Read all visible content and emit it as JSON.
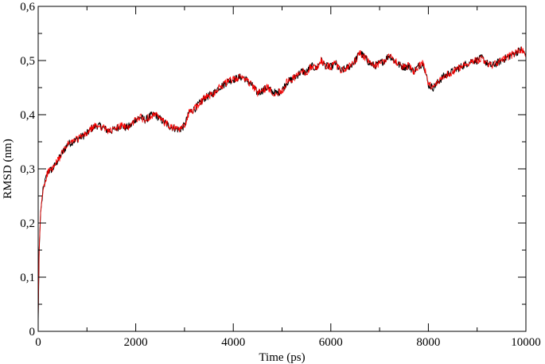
{
  "chart_data": {
    "type": "line",
    "title": "",
    "xlabel": "Time (ps)",
    "ylabel": "RMSD (nm)",
    "xlim": [
      0,
      10000
    ],
    "ylim": [
      0,
      0.6
    ],
    "x_ticks": [
      0,
      2000,
      4000,
      6000,
      8000,
      10000
    ],
    "x_tick_labels": [
      "0",
      "2000",
      "4000",
      "6000",
      "8000",
      "10000"
    ],
    "y_ticks": [
      0,
      0.1,
      0.2,
      0.3,
      0.4,
      0.5,
      0.6
    ],
    "y_tick_labels": [
      "0",
      "0,1",
      "0,2",
      "0,3",
      "0,4",
      "0,5",
      "0,6"
    ],
    "grid": false,
    "legend": "none",
    "series": [
      {
        "color": "#000000",
        "x": [
          0,
          20,
          50,
          100,
          150,
          200,
          300,
          400,
          500,
          600,
          700,
          800,
          900,
          1000,
          1100,
          1200,
          1300,
          1400,
          1500,
          1600,
          1700,
          1800,
          1900,
          2000,
          2100,
          2200,
          2300,
          2400,
          2500,
          2600,
          2700,
          2800,
          2900,
          3000,
          3100,
          3200,
          3300,
          3400,
          3500,
          3600,
          3700,
          3800,
          3900,
          4000,
          4100,
          4200,
          4300,
          4400,
          4500,
          4600,
          4700,
          4800,
          4900,
          5000,
          5100,
          5200,
          5300,
          5400,
          5500,
          5600,
          5700,
          5800,
          5900,
          6000,
          6100,
          6200,
          6300,
          6400,
          6500,
          6600,
          6700,
          6800,
          6900,
          7000,
          7100,
          7200,
          7300,
          7400,
          7500,
          7600,
          7700,
          7800,
          7900,
          8000,
          8100,
          8200,
          8300,
          8400,
          8500,
          8600,
          8700,
          8800,
          8900,
          9000,
          9100,
          9200,
          9300,
          9400,
          9500,
          9600,
          9700,
          9800,
          9900,
          10000
        ],
        "y": [
          0.02,
          0.15,
          0.22,
          0.26,
          0.28,
          0.295,
          0.3,
          0.315,
          0.33,
          0.345,
          0.35,
          0.355,
          0.36,
          0.365,
          0.375,
          0.38,
          0.378,
          0.372,
          0.37,
          0.375,
          0.38,
          0.376,
          0.38,
          0.392,
          0.395,
          0.39,
          0.398,
          0.4,
          0.392,
          0.385,
          0.378,
          0.375,
          0.372,
          0.38,
          0.405,
          0.41,
          0.42,
          0.43,
          0.435,
          0.44,
          0.45,
          0.455,
          0.462,
          0.465,
          0.468,
          0.47,
          0.462,
          0.452,
          0.44,
          0.445,
          0.45,
          0.442,
          0.44,
          0.445,
          0.46,
          0.465,
          0.472,
          0.48,
          0.478,
          0.49,
          0.485,
          0.5,
          0.49,
          0.488,
          0.495,
          0.48,
          0.485,
          0.49,
          0.5,
          0.515,
          0.505,
          0.495,
          0.49,
          0.495,
          0.5,
          0.51,
          0.5,
          0.492,
          0.488,
          0.49,
          0.48,
          0.49,
          0.495,
          0.455,
          0.45,
          0.46,
          0.47,
          0.475,
          0.48,
          0.485,
          0.49,
          0.495,
          0.5,
          0.5,
          0.505,
          0.495,
          0.49,
          0.495,
          0.5,
          0.505,
          0.51,
          0.515,
          0.52,
          0.51
        ]
      },
      {
        "color": "#ff0000",
        "x": [
          0,
          20,
          50,
          100,
          150,
          200,
          300,
          400,
          500,
          600,
          700,
          800,
          900,
          1000,
          1100,
          1200,
          1300,
          1400,
          1500,
          1600,
          1700,
          1800,
          1900,
          2000,
          2100,
          2200,
          2300,
          2400,
          2500,
          2600,
          2700,
          2800,
          2900,
          3000,
          3100,
          3200,
          3300,
          3400,
          3500,
          3600,
          3700,
          3800,
          3900,
          4000,
          4100,
          4200,
          4300,
          4400,
          4500,
          4600,
          4700,
          4800,
          4900,
          5000,
          5100,
          5200,
          5300,
          5400,
          5500,
          5600,
          5700,
          5800,
          5900,
          6000,
          6100,
          6200,
          6300,
          6400,
          6500,
          6600,
          6700,
          6800,
          6900,
          7000,
          7100,
          7200,
          7300,
          7400,
          7500,
          7600,
          7700,
          7800,
          7900,
          8000,
          8100,
          8200,
          8300,
          8400,
          8500,
          8600,
          8700,
          8800,
          8900,
          9000,
          9100,
          9200,
          9300,
          9400,
          9500,
          9600,
          9700,
          9800,
          9900,
          10000
        ],
        "y": [
          0.02,
          0.15,
          0.22,
          0.26,
          0.28,
          0.295,
          0.3,
          0.315,
          0.33,
          0.345,
          0.35,
          0.355,
          0.36,
          0.365,
          0.375,
          0.38,
          0.378,
          0.372,
          0.37,
          0.375,
          0.38,
          0.376,
          0.38,
          0.392,
          0.395,
          0.39,
          0.398,
          0.4,
          0.392,
          0.385,
          0.378,
          0.375,
          0.372,
          0.38,
          0.405,
          0.41,
          0.42,
          0.43,
          0.435,
          0.44,
          0.45,
          0.455,
          0.462,
          0.465,
          0.468,
          0.47,
          0.462,
          0.452,
          0.44,
          0.445,
          0.45,
          0.442,
          0.44,
          0.445,
          0.46,
          0.465,
          0.472,
          0.48,
          0.478,
          0.49,
          0.485,
          0.5,
          0.49,
          0.488,
          0.495,
          0.48,
          0.485,
          0.49,
          0.5,
          0.515,
          0.505,
          0.495,
          0.49,
          0.495,
          0.5,
          0.51,
          0.5,
          0.492,
          0.488,
          0.49,
          0.48,
          0.49,
          0.495,
          0.455,
          0.45,
          0.46,
          0.47,
          0.475,
          0.48,
          0.485,
          0.49,
          0.495,
          0.5,
          0.5,
          0.505,
          0.495,
          0.49,
          0.495,
          0.5,
          0.505,
          0.51,
          0.515,
          0.52,
          0.51
        ]
      }
    ]
  }
}
